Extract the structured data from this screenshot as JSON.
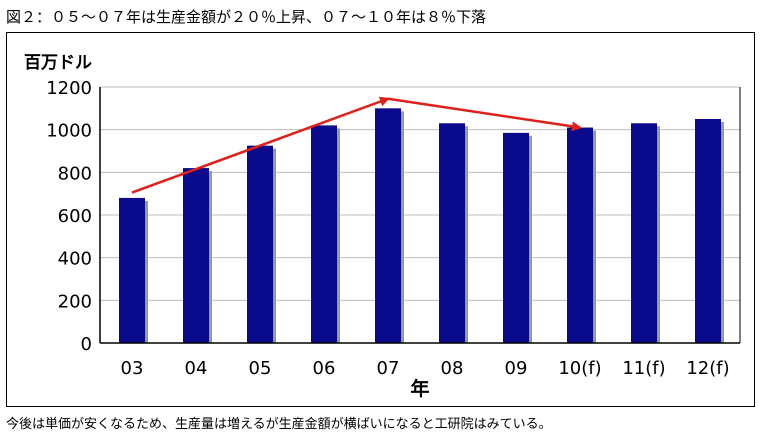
{
  "figure": {
    "title": "図２：０５～０７年は生産金額が２０％上昇、０７～１０年は８％下落",
    "caption": "今後は単価が安くなるため、生産量は増えるが生産金額が横ばいになると工研院はみている。"
  },
  "colors": {
    "bar": "#0a0a8c",
    "bar_shadow": "#9a9a9a",
    "arrow": "#e0201a",
    "grid": "#bdbdbd"
  },
  "chart_data": {
    "type": "bar",
    "title": "",
    "xlabel": "年",
    "ylabel": "百万ドル",
    "categories": [
      "03",
      "04",
      "05",
      "06",
      "07",
      "08",
      "09",
      "10(f)",
      "11(f)",
      "12(f)"
    ],
    "values": [
      680,
      820,
      925,
      1020,
      1100,
      1030,
      985,
      1010,
      1030,
      1050
    ],
    "ylim": [
      0,
      1200
    ],
    "yticks": [
      "0",
      "200",
      "400",
      "600",
      "800",
      "1000",
      "1200"
    ],
    "grid": true,
    "legend": "none",
    "trend_arrows": [
      {
        "from": {
          "category": "03",
          "value": 705
        },
        "to": {
          "category": "07",
          "value": 1145
        }
      },
      {
        "from": {
          "category": "07",
          "value": 1145
        },
        "to": {
          "category": "10(f)",
          "value": 1010
        }
      }
    ]
  }
}
